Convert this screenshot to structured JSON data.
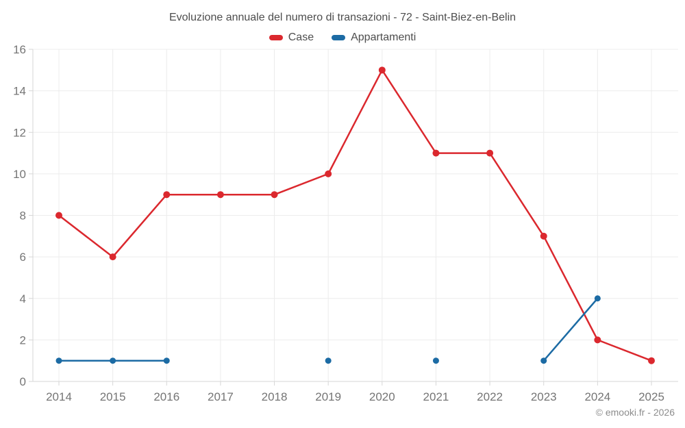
{
  "chart_data": {
    "type": "line",
    "title": "Evoluzione annuale del numero di transazioni - 72 - Saint-Biez-en-Belin",
    "categories": [
      "2014",
      "2015",
      "2016",
      "2017",
      "2018",
      "2019",
      "2020",
      "2021",
      "2022",
      "2023",
      "2024",
      "2025"
    ],
    "series": [
      {
        "name": "Case",
        "color": "#db282e",
        "values": [
          8,
          6,
          9,
          9,
          9,
          10,
          15,
          11,
          11,
          7,
          2,
          1
        ]
      },
      {
        "name": "Appartamenti",
        "color": "#1c6ba4",
        "values": [
          1,
          1,
          1,
          null,
          null,
          1,
          null,
          1,
          null,
          1,
          4,
          null
        ]
      }
    ],
    "xlabel": "",
    "ylabel": "",
    "ylim": [
      0,
      16
    ],
    "ytick_step": 2,
    "grid": true,
    "legend_position": "top",
    "grid_color": "#ececec",
    "axis_color": "#d6d6d6",
    "label_color": "#757575",
    "title_color": "#4d4d4d"
  },
  "footer": {
    "text": "© emooki.fr - 2026"
  }
}
